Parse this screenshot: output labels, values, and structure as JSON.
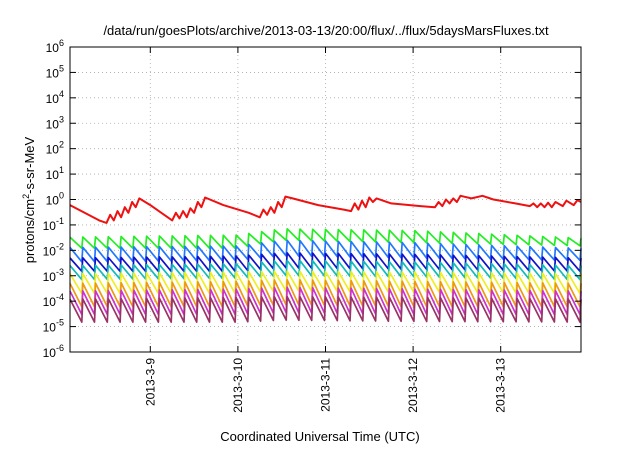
{
  "chart_data": {
    "type": "line",
    "title": "/data/run/goesPlots/archive/2013-03-13/20:00/flux/../flux/5daysMarsFluxes.txt",
    "xlabel": "Coordinated Universal Time (UTC)",
    "ylabel": {
      "pre": "protons/cm",
      "sup": "2",
      "post": "-s-sr-MeV"
    },
    "yscale": "log",
    "ylim": [
      1e-06,
      1000000.0
    ],
    "xlim": [
      "2013-03-08T02:00",
      "2013-03-13T22:00"
    ],
    "y_ticks": [
      {
        "value": 1000000.0,
        "base": "10",
        "exp": "6"
      },
      {
        "value": 100000.0,
        "base": "10",
        "exp": "5"
      },
      {
        "value": 10000.0,
        "base": "10",
        "exp": "4"
      },
      {
        "value": 1000.0,
        "base": "10",
        "exp": "3"
      },
      {
        "value": 100.0,
        "base": "10",
        "exp": "2"
      },
      {
        "value": 10.0,
        "base": "10",
        "exp": "1"
      },
      {
        "value": 1.0,
        "base": "10",
        "exp": "0"
      },
      {
        "value": 0.1,
        "base": "10",
        "exp": "-1"
      },
      {
        "value": 0.01,
        "base": "10",
        "exp": "-2"
      },
      {
        "value": 0.001,
        "base": "10",
        "exp": "-3"
      },
      {
        "value": 0.0001,
        "base": "10",
        "exp": "-4"
      },
      {
        "value": 1e-05,
        "base": "10",
        "exp": "-5"
      },
      {
        "value": 1e-06,
        "base": "10",
        "exp": "-6"
      }
    ],
    "x_ticks": [
      {
        "value": "2013-03-09T00:00",
        "label": "2013-3-9"
      },
      {
        "value": "2013-03-10T00:00",
        "label": "2013-3-10"
      },
      {
        "value": "2013-03-11T00:00",
        "label": "2013-3-11"
      },
      {
        "value": "2013-03-12T00:00",
        "label": "2013-3-12"
      },
      {
        "value": "2013-03-13T00:00",
        "label": "2013-3-13"
      }
    ],
    "grid": true,
    "series": [
      {
        "color": "#ee1111",
        "points": [
          [
            "2013-03-08T02:00",
            0.6
          ],
          [
            "2013-03-08T06:00",
            0.3
          ],
          [
            "2013-03-08T10:00",
            0.15
          ],
          [
            "2013-03-08T12:00",
            0.12
          ],
          [
            "2013-03-08T13:00",
            0.25
          ],
          [
            "2013-03-08T14:00",
            0.15
          ],
          [
            "2013-03-08T15:00",
            0.35
          ],
          [
            "2013-03-08T16:00",
            0.2
          ],
          [
            "2013-03-08T17:00",
            0.5
          ],
          [
            "2013-03-08T18:00",
            0.3
          ],
          [
            "2013-03-08T19:00",
            0.8
          ],
          [
            "2013-03-08T20:00",
            0.5
          ],
          [
            "2013-03-08T21:00",
            1.1
          ],
          [
            "2013-03-09T00:00",
            0.6
          ],
          [
            "2013-03-09T03:00",
            0.3
          ],
          [
            "2013-03-09T06:00",
            0.15
          ],
          [
            "2013-03-09T07:00",
            0.3
          ],
          [
            "2013-03-09T08:00",
            0.18
          ],
          [
            "2013-03-09T09:00",
            0.35
          ],
          [
            "2013-03-09T10:00",
            0.2
          ],
          [
            "2013-03-09T11:00",
            0.45
          ],
          [
            "2013-03-09T12:00",
            0.3
          ],
          [
            "2013-03-09T13:00",
            0.8
          ],
          [
            "2013-03-09T14:00",
            0.5
          ],
          [
            "2013-03-09T15:00",
            1.2
          ],
          [
            "2013-03-09T20:00",
            0.6
          ],
          [
            "2013-03-10T03:00",
            0.3
          ],
          [
            "2013-03-10T06:00",
            0.2
          ],
          [
            "2013-03-10T07:00",
            0.4
          ],
          [
            "2013-03-10T08:00",
            0.25
          ],
          [
            "2013-03-10T09:00",
            0.5
          ],
          [
            "2013-03-10T10:00",
            0.3
          ],
          [
            "2013-03-10T11:00",
            0.8
          ],
          [
            "2013-03-10T12:00",
            0.5
          ],
          [
            "2013-03-10T13:00",
            1.3
          ],
          [
            "2013-03-10T15:00",
            1.1
          ],
          [
            "2013-03-10T22:00",
            0.6
          ],
          [
            "2013-03-11T05:00",
            0.4
          ],
          [
            "2013-03-11T07:00",
            0.35
          ],
          [
            "2013-03-11T08:00",
            0.7
          ],
          [
            "2013-03-11T09:00",
            0.4
          ],
          [
            "2013-03-11T10:00",
            0.9
          ],
          [
            "2013-03-11T11:00",
            0.5
          ],
          [
            "2013-03-11T12:00",
            1.2
          ],
          [
            "2013-03-11T13:00",
            0.8
          ],
          [
            "2013-03-11T14:00",
            1.1
          ],
          [
            "2013-03-11T18:00",
            0.7
          ],
          [
            "2013-03-12T02:00",
            0.55
          ],
          [
            "2013-03-12T06:00",
            0.5
          ],
          [
            "2013-03-12T07:00",
            0.8
          ],
          [
            "2013-03-12T08:00",
            0.55
          ],
          [
            "2013-03-12T09:00",
            1.0
          ],
          [
            "2013-03-12T10:00",
            0.7
          ],
          [
            "2013-03-12T11:00",
            1.1
          ],
          [
            "2013-03-12T12:00",
            0.8
          ],
          [
            "2013-03-12T13:00",
            1.4
          ],
          [
            "2013-03-12T16:00",
            1.1
          ],
          [
            "2013-03-12T19:00",
            1.4
          ],
          [
            "2013-03-12T22:00",
            1.0
          ],
          [
            "2013-03-13T04:00",
            0.7
          ],
          [
            "2013-03-13T08:00",
            0.55
          ],
          [
            "2013-03-13T09:00",
            0.7
          ],
          [
            "2013-03-13T10:00",
            0.5
          ],
          [
            "2013-03-13T11:00",
            0.7
          ],
          [
            "2013-03-13T12:00",
            0.5
          ],
          [
            "2013-03-13T13:00",
            0.75
          ],
          [
            "2013-03-13T14:00",
            0.5
          ],
          [
            "2013-03-13T15:00",
            0.8
          ],
          [
            "2013-03-13T17:00",
            0.55
          ],
          [
            "2013-03-13T18:00",
            0.9
          ],
          [
            "2013-03-13T20:00",
            0.6
          ],
          [
            "2013-03-13T21:00",
            0.95
          ],
          [
            "2013-03-13T22:00",
            0.8
          ]
        ]
      },
      {
        "color": "#22ee22",
        "sawtooth": {
          "start": "2013-03-08T02:00",
          "end": "2013-03-13T22:00",
          "periods": 40,
          "peak": [
            [
              "2013-03-08T02:00",
              0.033
            ],
            [
              "2013-03-10T00:00",
              0.04
            ],
            [
              "2013-03-10T12:00",
              0.07
            ],
            [
              "2013-03-12T00:00",
              0.06
            ],
            [
              "2013-03-13T22:00",
              0.03
            ]
          ],
          "trough": [
            [
              "2013-03-08T02:00",
              0.012
            ],
            [
              "2013-03-10T00:00",
              0.012
            ],
            [
              "2013-03-10T12:00",
              0.025
            ],
            [
              "2013-03-12T00:00",
              0.02
            ],
            [
              "2013-03-13T22:00",
              0.015
            ]
          ]
        }
      },
      {
        "color": "#2277ff",
        "sawtooth": {
          "start": "2013-03-08T02:00",
          "end": "2013-03-13T22:00",
          "periods": 40,
          "peak": [
            [
              "2013-03-08T02:00",
              0.013
            ],
            [
              "2013-03-10T00:00",
              0.015
            ],
            [
              "2013-03-10T12:00",
              0.025
            ],
            [
              "2013-03-12T00:00",
              0.02
            ],
            [
              "2013-03-13T22:00",
              0.012
            ]
          ],
          "trough": [
            [
              "2013-03-08T02:00",
              0.0035
            ],
            [
              "2013-03-10T00:00",
              0.004
            ],
            [
              "2013-03-10T12:00",
              0.006
            ],
            [
              "2013-03-12T00:00",
              0.005
            ],
            [
              "2013-03-13T22:00",
              0.004
            ]
          ]
        }
      },
      {
        "color": "#1111cc",
        "sawtooth": {
          "start": "2013-03-08T02:00",
          "end": "2013-03-13T22:00",
          "periods": 40,
          "peak": [
            [
              "2013-03-08T02:00",
              0.005
            ],
            [
              "2013-03-10T00:00",
              0.006
            ],
            [
              "2013-03-10T12:00",
              0.008
            ],
            [
              "2013-03-12T00:00",
              0.007
            ],
            [
              "2013-03-13T22:00",
              0.005
            ]
          ],
          "trough": [
            [
              "2013-03-08T02:00",
              0.0015
            ],
            [
              "2013-03-10T00:00",
              0.0015
            ],
            [
              "2013-03-10T12:00",
              0.002
            ],
            [
              "2013-03-12T00:00",
              0.0018
            ],
            [
              "2013-03-13T22:00",
              0.0015
            ]
          ]
        }
      },
      {
        "color": "#11bbbb",
        "sawtooth": {
          "start": "2013-03-08T02:00",
          "end": "2013-03-13T22:00",
          "periods": 40,
          "peak": [
            [
              "2013-03-08T02:00",
              0.0025
            ],
            [
              "2013-03-10T00:00",
              0.003
            ],
            [
              "2013-03-10T12:00",
              0.004
            ],
            [
              "2013-03-12T00:00",
              0.0035
            ],
            [
              "2013-03-13T22:00",
              0.0025
            ]
          ],
          "trough": [
            [
              "2013-03-08T02:00",
              0.0007
            ],
            [
              "2013-03-10T00:00",
              0.0008
            ],
            [
              "2013-03-10T12:00",
              0.001
            ],
            [
              "2013-03-12T00:00",
              0.0009
            ],
            [
              "2013-03-13T22:00",
              0.0007
            ]
          ]
        }
      },
      {
        "color": "#eeee22",
        "sawtooth": {
          "start": "2013-03-08T02:00",
          "end": "2013-03-13T22:00",
          "periods": 40,
          "peak": [
            [
              "2013-03-08T02:00",
              0.0012
            ],
            [
              "2013-03-10T00:00",
              0.0014
            ],
            [
              "2013-03-10T12:00",
              0.0015
            ],
            [
              "2013-03-12T00:00",
              0.0014
            ],
            [
              "2013-03-13T22:00",
              0.0012
            ]
          ],
          "trough": [
            [
              "2013-03-08T02:00",
              0.0002
            ],
            [
              "2013-03-10T00:00",
              0.0002
            ],
            [
              "2013-03-10T12:00",
              0.00025
            ],
            [
              "2013-03-12T00:00",
              0.00022
            ],
            [
              "2013-03-13T22:00",
              0.0002
            ]
          ]
        }
      },
      {
        "color": "#ee9911",
        "sawtooth": {
          "start": "2013-03-08T02:00",
          "end": "2013-03-13T22:00",
          "periods": 40,
          "peak": [
            [
              "2013-03-08T02:00",
              0.0005
            ],
            [
              "2013-03-10T00:00",
              0.0006
            ],
            [
              "2013-03-10T12:00",
              0.0007
            ],
            [
              "2013-03-12T00:00",
              0.0006
            ],
            [
              "2013-03-13T22:00",
              0.0005
            ]
          ],
          "trough": [
            [
              "2013-03-08T02:00",
              6e-05
            ],
            [
              "2013-03-10T00:00",
              6e-05
            ],
            [
              "2013-03-10T12:00",
              7e-05
            ],
            [
              "2013-03-12T00:00",
              6e-05
            ],
            [
              "2013-03-13T22:00",
              6e-05
            ]
          ]
        }
      },
      {
        "color": "#cc33cc",
        "sawtooth": {
          "start": "2013-03-08T02:00",
          "end": "2013-03-13T22:00",
          "periods": 40,
          "peak": [
            [
              "2013-03-08T02:00",
              0.00025
            ],
            [
              "2013-03-10T00:00",
              0.0003
            ],
            [
              "2013-03-10T12:00",
              0.00035
            ],
            [
              "2013-03-12T00:00",
              0.0003
            ],
            [
              "2013-03-13T22:00",
              0.00025
            ]
          ],
          "trough": [
            [
              "2013-03-08T02:00",
              3e-05
            ],
            [
              "2013-03-10T00:00",
              3e-05
            ],
            [
              "2013-03-10T12:00",
              3.5e-05
            ],
            [
              "2013-03-12T00:00",
              3e-05
            ],
            [
              "2013-03-13T22:00",
              3e-05
            ]
          ]
        }
      },
      {
        "color": "#993366",
        "sawtooth": {
          "start": "2013-03-08T02:00",
          "end": "2013-03-13T22:00",
          "periods": 40,
          "peak": [
            [
              "2013-03-08T02:00",
              0.00012
            ],
            [
              "2013-03-10T00:00",
              0.00014
            ],
            [
              "2013-03-10T12:00",
              0.00015
            ],
            [
              "2013-03-12T00:00",
              0.00014
            ],
            [
              "2013-03-13T22:00",
              0.00012
            ]
          ],
          "trough": [
            [
              "2013-03-08T02:00",
              1.5e-05
            ],
            [
              "2013-03-10T00:00",
              1.5e-05
            ],
            [
              "2013-03-10T12:00",
              1.8e-05
            ],
            [
              "2013-03-12T00:00",
              1.6e-05
            ],
            [
              "2013-03-13T22:00",
              1.5e-05
            ]
          ]
        }
      }
    ]
  }
}
